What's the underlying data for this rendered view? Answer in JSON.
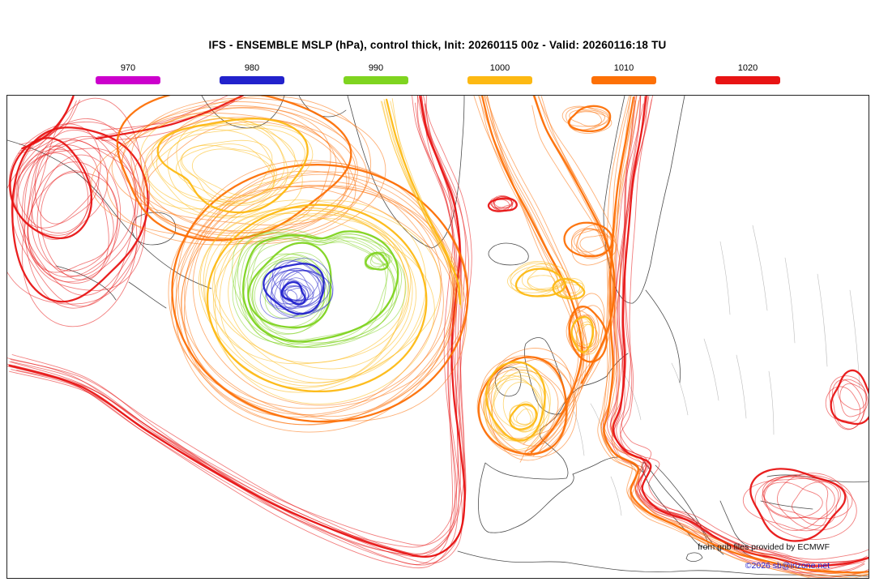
{
  "title": "IFS - ENSEMBLE MSLP (hPa), control thick, Init: 20260115 00z - Valid: 20260116:18 TU",
  "legend": {
    "items": [
      {
        "label": "970",
        "color": "#cc00cc"
      },
      {
        "label": "980",
        "color": "#2222cc"
      },
      {
        "label": "990",
        "color": "#7fd420"
      },
      {
        "label": "1000",
        "color": "#fdb913"
      },
      {
        "label": "1010",
        "color": "#fd7006"
      },
      {
        "label": "1020",
        "color": "#e81414"
      }
    ]
  },
  "attribution": {
    "line1": "from grib files provided by ECMWF",
    "line2": "©2026 sb@irizone.net"
  },
  "chart_data": {
    "type": "contour-spaghetti-map",
    "model": "IFS - ENSEMBLE",
    "variable": "MSLP (hPa)",
    "init": "20260115 00z",
    "valid": "20260116:18 TU",
    "control_member_style": "thick",
    "region": "North Atlantic - Europe",
    "levels": [
      {
        "hpa": 970,
        "color": "#cc00cc"
      },
      {
        "hpa": 980,
        "color": "#2222cc"
      },
      {
        "hpa": 990,
        "color": "#7fd420"
      },
      {
        "hpa": 1000,
        "color": "#fdb913"
      },
      {
        "hpa": 1010,
        "color": "#fd7006"
      },
      {
        "hpa": 1020,
        "color": "#e81414"
      }
    ],
    "features": [
      {
        "type": "low",
        "closed_level_hpa": 980,
        "location": "central North Atlantic, south of Greenland"
      },
      {
        "type": "ridge",
        "level_hpa": 1020,
        "location": "western Atlantic near left edge of map"
      },
      {
        "type": "ridge",
        "level_hpa": 1020,
        "location": "eastern Europe / Baltic, extending to Mediterranean"
      },
      {
        "type": "trough",
        "level_hpa": 1000,
        "location": "Ireland / United Kingdom"
      }
    ]
  }
}
